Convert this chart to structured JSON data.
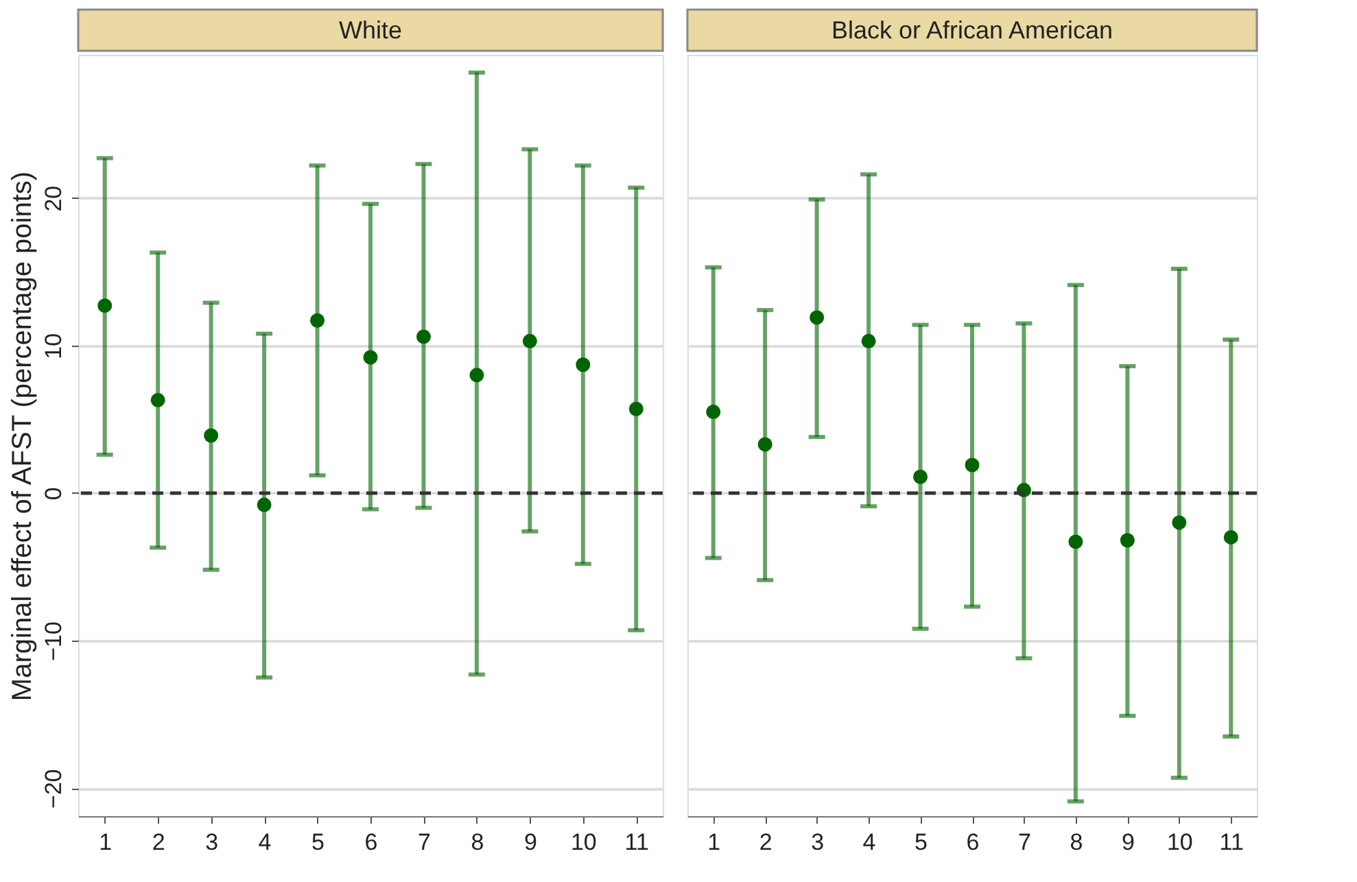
{
  "chart_data": [
    {
      "type": "scatter",
      "title": "White",
      "ylabel": "Marginal effect of AFST (percentage points)",
      "categories": [
        "1",
        "2",
        "3",
        "4",
        "5",
        "6",
        "7",
        "8",
        "9",
        "10",
        "11"
      ],
      "series": [
        {
          "color": "#006400",
          "values": [
            12.7,
            6.3,
            3.9,
            -0.8,
            11.7,
            9.2,
            10.6,
            8.0,
            10.3,
            8.7,
            5.7
          ],
          "errors": [
            [
              2.6,
              22.7
            ],
            [
              -3.7,
              16.3
            ],
            [
              -5.2,
              12.9
            ],
            [
              -12.5,
              10.8
            ],
            [
              1.2,
              22.2
            ],
            [
              -1.1,
              19.6
            ],
            [
              -1.0,
              22.3
            ],
            [
              -12.3,
              28.5
            ],
            [
              -2.6,
              23.3
            ],
            [
              -4.8,
              22.2
            ],
            [
              -9.3,
              20.7
            ]
          ]
        }
      ],
      "ylim": [
        -21.9,
        29.7
      ],
      "yticks": [
        -20,
        -10,
        0,
        10,
        20
      ],
      "grid": "y",
      "marker": "circle",
      "ref_lines": [
        {
          "axis": "y",
          "value": 0,
          "line_style": "dashed",
          "color": "#333333"
        }
      ]
    },
    {
      "type": "scatter",
      "title": "Black or African American",
      "categories": [
        "1",
        "2",
        "3",
        "4",
        "5",
        "6",
        "7",
        "8",
        "9",
        "10",
        "11"
      ],
      "series": [
        {
          "color": "#006400",
          "values": [
            5.5,
            3.3,
            11.9,
            10.3,
            1.1,
            1.9,
            0.2,
            -3.3,
            -3.2,
            -2.0,
            -3.0
          ],
          "errors": [
            [
              -4.4,
              15.3
            ],
            [
              -5.9,
              12.4
            ],
            [
              3.8,
              19.9
            ],
            [
              -0.9,
              21.6
            ],
            [
              -9.2,
              11.4
            ],
            [
              -7.7,
              11.4
            ],
            [
              -11.2,
              11.5
            ],
            [
              -20.9,
              14.1
            ],
            [
              -15.1,
              8.6
            ],
            [
              -19.3,
              15.2
            ],
            [
              -16.5,
              10.4
            ]
          ]
        }
      ],
      "ylim": [
        -21.9,
        29.7
      ],
      "yticks": [
        -20,
        -10,
        0,
        10,
        20
      ],
      "grid": "y",
      "marker": "circle",
      "tick_labels": "x",
      "ref_lines": [
        {
          "axis": "y",
          "value": 0,
          "line_style": "dashed",
          "color": "#333333"
        }
      ]
    }
  ]
}
